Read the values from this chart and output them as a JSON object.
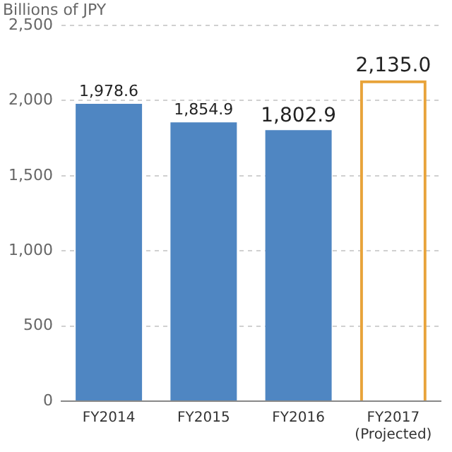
{
  "chart_data": {
    "type": "bar",
    "ylabel": "Billions of JPY",
    "categories": [
      "FY2014",
      "FY2015",
      "FY2016",
      "FY2017 (Projected)"
    ],
    "series": [
      {
        "color": "#4f86c2",
        "values": [
          1978.6,
          1854.9,
          1802.9,
          null
        ]
      },
      {
        "color": "#e8a33a",
        "values": [
          null,
          null,
          null,
          2135.0
        ]
      }
    ],
    "value_labels": [
      "1,978.6",
      "1,854.9",
      "1,802.9",
      "2,135.0"
    ],
    "ylim": [
      0,
      2500
    ],
    "yticks": [
      {
        "value": 0,
        "label": "0"
      },
      {
        "value": 500,
        "label": "500"
      },
      {
        "value": 1000,
        "label": "1,000"
      },
      {
        "value": 1500,
        "label": "1,500"
      },
      {
        "value": 2000,
        "label": "2,000"
      },
      {
        "value": 2500,
        "label": "2,500"
      }
    ],
    "grid": "y",
    "legend": false
  }
}
